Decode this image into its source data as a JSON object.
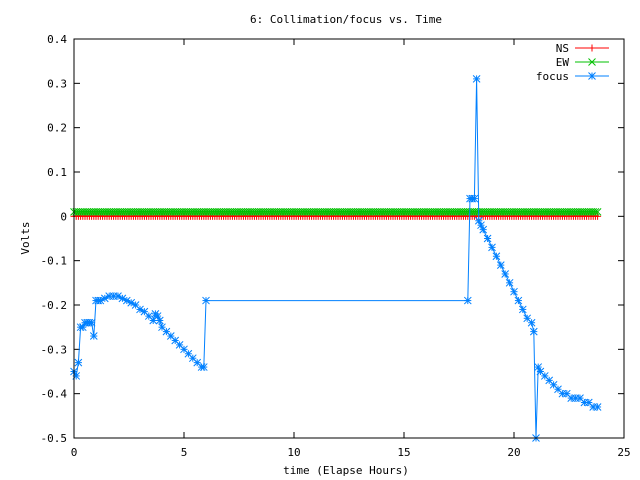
{
  "chart_data": {
    "type": "line",
    "title": "6: Collimation/focus vs. Time",
    "xlabel": "time (Elapse Hours)",
    "ylabel": "Volts",
    "xlim": [
      0,
      25
    ],
    "ylim": [
      -0.5,
      0.4
    ],
    "xticks": [
      "0",
      "5",
      "10",
      "15",
      "20",
      "25"
    ],
    "yticks": [
      "-0.5",
      "-0.4",
      "-0.3",
      "-0.2",
      "-0.1",
      "0",
      "0.1",
      "0.2",
      "0.3",
      "0.4"
    ],
    "grid": false,
    "legend_position": "top-right",
    "series": [
      {
        "name": "NS",
        "color": "#ff0000",
        "marker": "plus",
        "x": [
          0,
          23.8
        ],
        "y": [
          0.0,
          0.0
        ],
        "constant": true
      },
      {
        "name": "EW",
        "color": "#00c000",
        "marker": "cross",
        "x": [
          0,
          23.8
        ],
        "y": [
          0.01,
          0.01
        ],
        "constant": true
      },
      {
        "name": "focus",
        "color": "#0080ff",
        "marker": "star",
        "x": [
          0.0,
          0.1,
          0.2,
          0.3,
          0.4,
          0.5,
          0.6,
          0.7,
          0.8,
          0.9,
          1.0,
          1.1,
          1.2,
          1.4,
          1.6,
          1.8,
          2.0,
          2.2,
          2.4,
          2.6,
          2.8,
          3.0,
          3.2,
          3.4,
          3.6,
          3.7,
          3.8,
          3.9,
          4.0,
          4.2,
          4.4,
          4.6,
          4.8,
          5.0,
          5.2,
          5.4,
          5.6,
          5.8,
          5.9,
          6.0,
          17.9,
          18.0,
          18.1,
          18.2,
          18.3,
          18.4,
          18.5,
          18.6,
          18.8,
          19.0,
          19.2,
          19.4,
          19.6,
          19.8,
          20.0,
          20.2,
          20.4,
          20.6,
          20.8,
          20.9,
          21.0,
          21.1,
          21.2,
          21.4,
          21.6,
          21.8,
          22.0,
          22.2,
          22.4,
          22.6,
          22.8,
          23.0,
          23.2,
          23.4,
          23.6,
          23.8
        ],
        "y": [
          -0.35,
          -0.36,
          -0.33,
          -0.25,
          -0.25,
          -0.24,
          -0.24,
          -0.24,
          -0.24,
          -0.27,
          -0.19,
          -0.19,
          -0.19,
          -0.185,
          -0.18,
          -0.18,
          -0.18,
          -0.185,
          -0.19,
          -0.195,
          -0.2,
          -0.21,
          -0.215,
          -0.225,
          -0.235,
          -0.22,
          -0.225,
          -0.235,
          -0.25,
          -0.26,
          -0.27,
          -0.28,
          -0.29,
          -0.3,
          -0.31,
          -0.32,
          -0.33,
          -0.34,
          -0.34,
          -0.19,
          -0.19,
          0.04,
          0.04,
          0.04,
          0.31,
          -0.01,
          -0.02,
          -0.03,
          -0.05,
          -0.07,
          -0.09,
          -0.11,
          -0.13,
          -0.15,
          -0.17,
          -0.19,
          -0.21,
          -0.23,
          -0.24,
          -0.26,
          -0.5,
          -0.34,
          -0.35,
          -0.36,
          -0.37,
          -0.38,
          -0.39,
          -0.4,
          -0.4,
          -0.41,
          -0.41,
          -0.41,
          -0.42,
          -0.42,
          -0.43,
          -0.43
        ]
      }
    ]
  }
}
